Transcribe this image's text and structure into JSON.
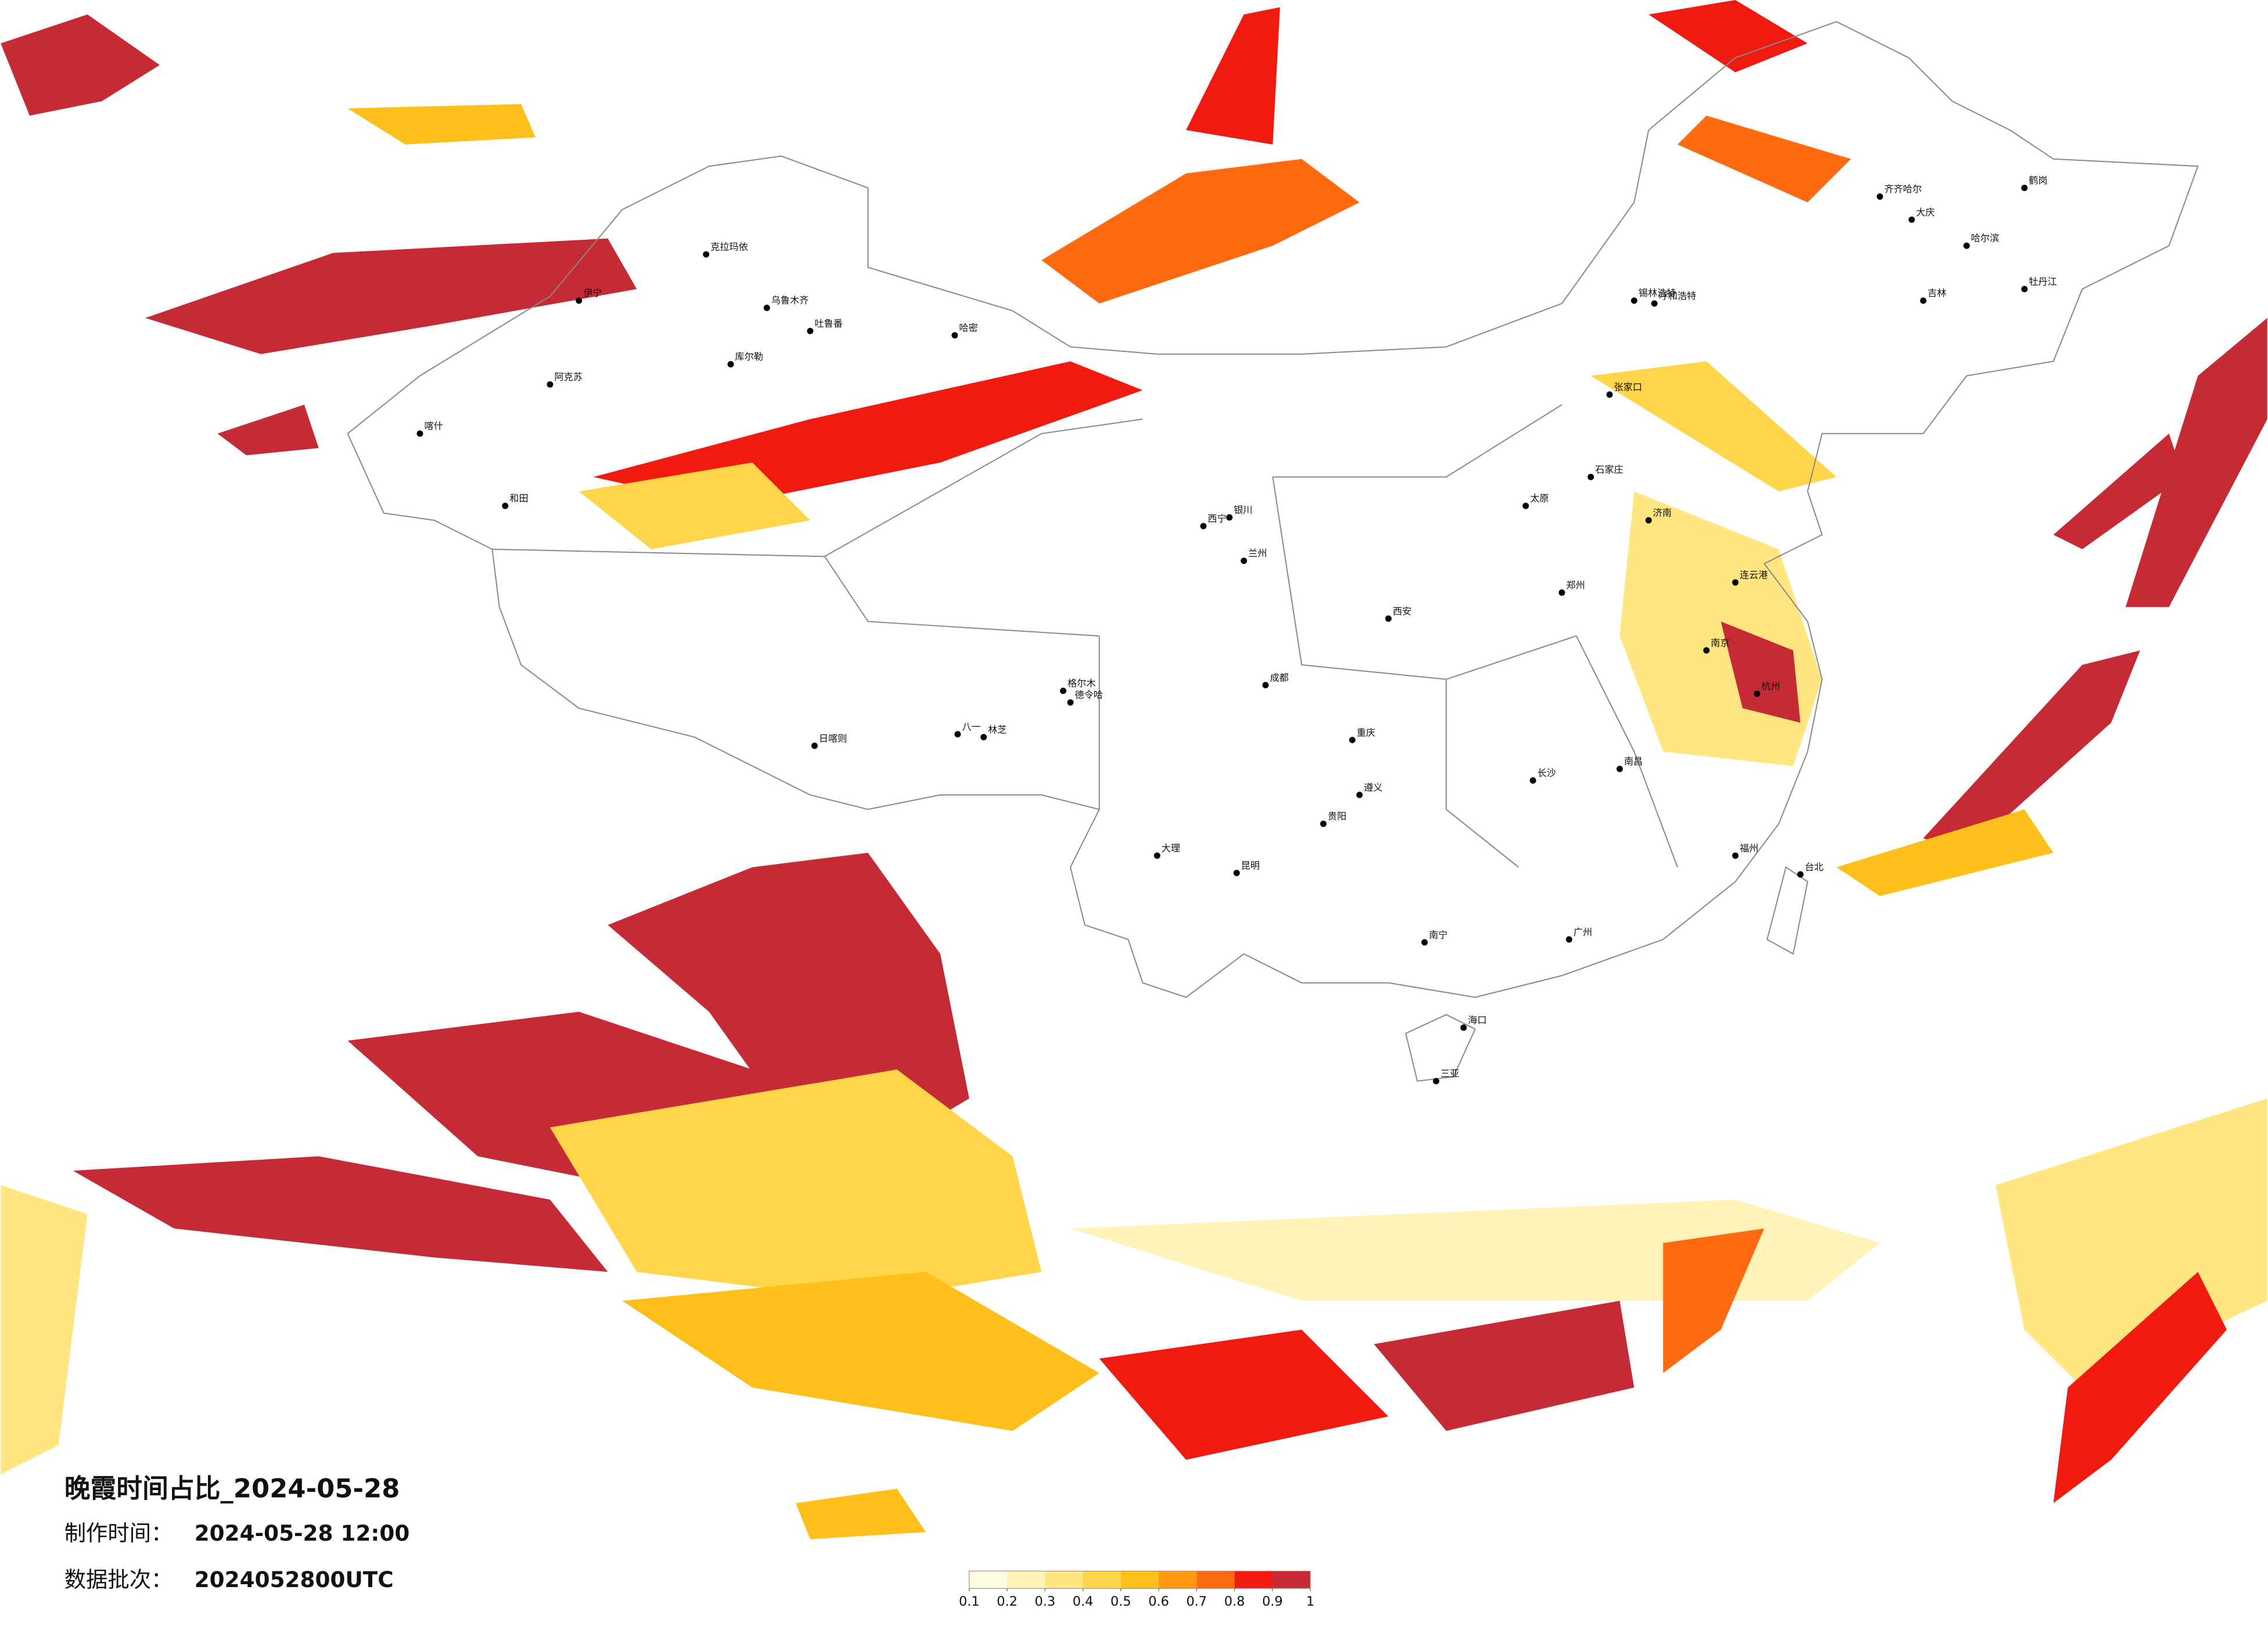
{
  "title": "晚霞时间占比_2024-05-28",
  "made_time_label": "制作时间：",
  "made_time": "2024-05-28 12:00",
  "batch_label": "数据批次：",
  "batch": "2024052800UTC",
  "legend": {
    "ticks": [
      0.1,
      0.2,
      0.3,
      0.4,
      0.5,
      0.6,
      0.7,
      0.8,
      0.9,
      1
    ],
    "colors": [
      "#fffbe3",
      "#fff3b8",
      "#ffe680",
      "#ffd54a",
      "#ffbf1a",
      "#ff9a10",
      "#ff6a10",
      "#f01a10",
      "#c62a35"
    ]
  },
  "cities": [
    "克拉玛依",
    "乌鲁木齐",
    "伊宁",
    "吐鲁番",
    "哈密",
    "库尔勒",
    "阿克苏",
    "和田",
    "喀什",
    "格尔木",
    "日喀则",
    "林芝",
    "八一",
    "西宁",
    "德令哈",
    "呼和浩特",
    "张家口",
    "锡林浩特",
    "齐齐哈尔",
    "哈尔滨",
    "吉林",
    "牡丹江",
    "大庆",
    "鹤岗",
    "石家庄",
    "太原",
    "济南",
    "郑州",
    "西安",
    "成都",
    "重庆",
    "昆明",
    "贵阳",
    "南宁",
    "长沙",
    "南昌",
    "福州",
    "杭州",
    "南京",
    "连云港",
    "广州",
    "海口",
    "三亚",
    "台北",
    "银川",
    "兰州",
    "大理",
    "遵义"
  ]
}
